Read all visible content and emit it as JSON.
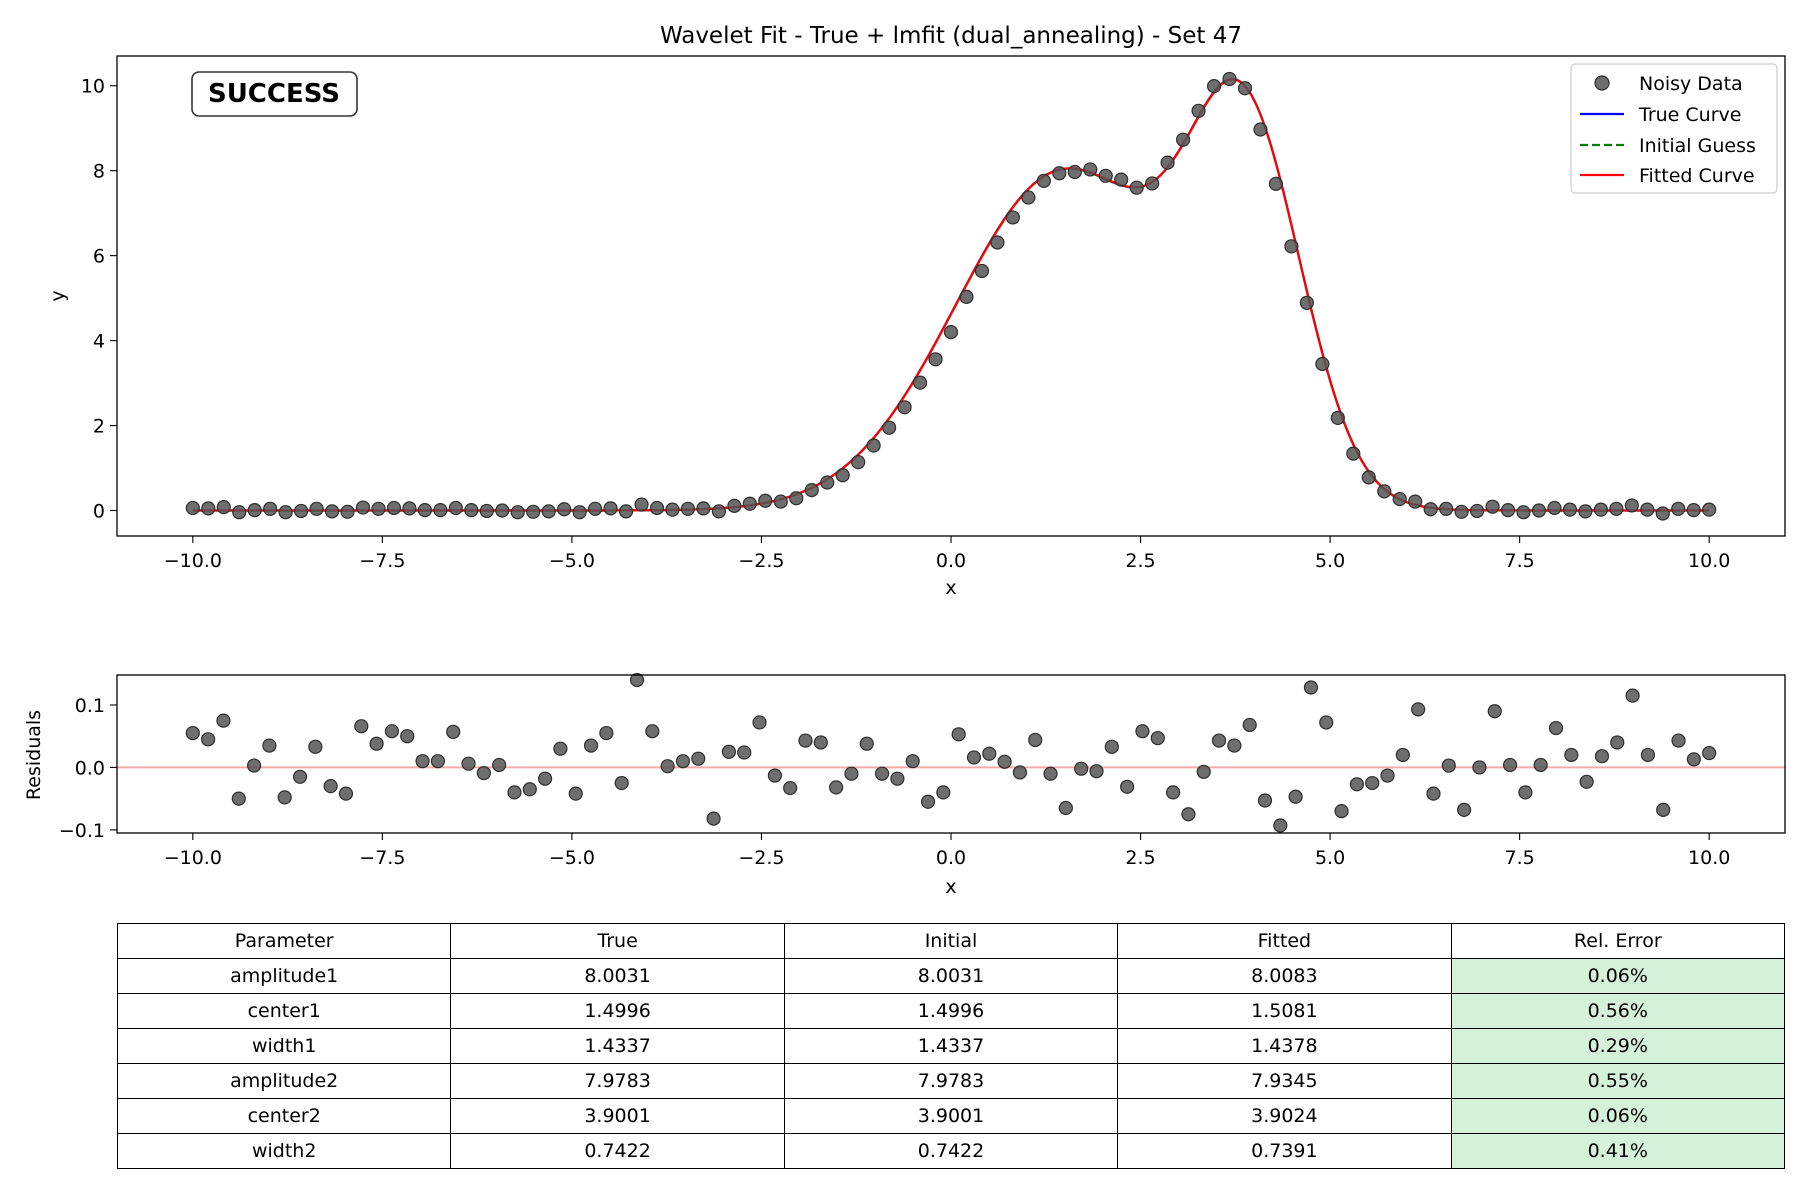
{
  "chart_data": [
    {
      "type": "scatter",
      "title": "Wavelet Fit - True + lmfit (dual_annealing) - Set 47",
      "xlabel": "x",
      "ylabel": "y",
      "xlim": [
        -11.0,
        11.0
      ],
      "ylim": [
        -0.6,
        10.7
      ],
      "xticks": [
        -10.0,
        -7.5,
        -5.0,
        -2.5,
        0.0,
        2.5,
        5.0,
        7.5,
        10.0
      ],
      "xtick_labels": [
        "−10.0",
        "−7.5",
        "−5.0",
        "−2.5",
        "0.0",
        "2.5",
        "5.0",
        "7.5",
        "10.0"
      ],
      "yticks": [
        0,
        2,
        4,
        6,
        8,
        10
      ],
      "ytick_labels": [
        "0",
        "2",
        "4",
        "6",
        "8",
        "10"
      ],
      "grid": false,
      "legend_placement": "top-right",
      "status_badge": {
        "text": "SUCCESS",
        "color": "#008000"
      },
      "series": [
        {
          "name": "Noisy Data",
          "kind": "markers",
          "color": "#555555",
          "y": [
            0.06,
            0.05,
            0.08,
            -0.04,
            0.01,
            0.04,
            -0.04,
            -0.01,
            0.04,
            -0.02,
            -0.03,
            0.07,
            0.04,
            0.06,
            0.05,
            0.01,
            0.01,
            0.06,
            0.01,
            -0.01,
            0.0,
            -0.04,
            -0.03,
            -0.02,
            0.03,
            -0.04,
            0.04,
            0.05,
            -0.02,
            0.14,
            0.06,
            0.02,
            0.04,
            0.05,
            -0.02,
            0.11,
            0.16,
            0.23,
            0.21,
            0.29,
            0.48,
            0.66,
            0.83,
            1.14,
            1.53,
            1.95,
            2.43,
            3.01,
            3.56,
            4.2,
            5.03,
            5.64,
            6.31,
            6.9,
            7.37,
            7.76,
            7.94,
            7.97,
            8.03,
            7.88,
            7.79,
            7.6,
            7.7,
            8.19,
            8.73,
            9.41,
            9.99,
            10.16,
            9.94,
            8.97,
            7.69,
            6.22,
            4.89,
            3.45,
            2.18,
            1.34,
            0.78,
            0.45,
            0.27,
            0.21,
            0.03,
            0.04,
            -0.03,
            -0.01,
            0.09,
            0.01,
            -0.04,
            0.0,
            0.06,
            0.02,
            -0.02,
            0.02,
            0.04,
            0.12,
            0.02,
            -0.07,
            0.04,
            0.01,
            0.02
          ]
        },
        {
          "name": "True Curve",
          "kind": "line",
          "color": "#0000ff",
          "style": "solid"
        },
        {
          "name": "Initial Guess",
          "kind": "line",
          "color": "#008000",
          "style": "dashed"
        },
        {
          "name": "Fitted Curve",
          "kind": "line",
          "color": "#ff0000",
          "style": "solid"
        }
      ],
      "model": {
        "true": {
          "amplitude1": 8.0031,
          "center1": 1.4996,
          "width1": 1.4337,
          "amplitude2": 7.9783,
          "center2": 3.9001,
          "width2": 0.7422
        },
        "initial": {
          "amplitude1": 8.0031,
          "center1": 1.4996,
          "width1": 1.4337,
          "amplitude2": 7.9783,
          "center2": 3.9001,
          "width2": 0.7422
        },
        "fitted": {
          "amplitude1": 8.0083,
          "center1": 1.5081,
          "width1": 1.4378,
          "amplitude2": 7.9345,
          "center2": 3.9024,
          "width2": 0.7391
        }
      }
    },
    {
      "type": "scatter",
      "xlabel": "x",
      "ylabel": "Residuals",
      "xlim": [
        -11.0,
        11.0
      ],
      "ylim": [
        -0.105,
        0.148
      ],
      "xticks": [
        -10.0,
        -7.5,
        -5.0,
        -2.5,
        0.0,
        2.5,
        5.0,
        7.5,
        10.0
      ],
      "xtick_labels": [
        "−10.0",
        "−7.5",
        "−5.0",
        "−2.5",
        "0.0",
        "2.5",
        "5.0",
        "7.5",
        "10.0"
      ],
      "yticks": [
        -0.1,
        0.0,
        0.1
      ],
      "ytick_labels": [
        "−0.1",
        "0.0",
        "0.1"
      ],
      "grid": false,
      "zero_line_color": "#f4aaaa",
      "series": [
        {
          "name": "Residuals",
          "kind": "markers",
          "color": "#555555",
          "y": [
            0.055,
            0.045,
            0.075,
            -0.05,
            0.003,
            0.035,
            -0.048,
            -0.015,
            0.033,
            -0.03,
            -0.042,
            0.066,
            0.038,
            0.058,
            0.05,
            0.01,
            0.01,
            0.057,
            0.006,
            -0.009,
            0.004,
            -0.04,
            -0.035,
            -0.018,
            0.03,
            -0.042,
            0.035,
            0.055,
            -0.025,
            0.14,
            0.058,
            0.002,
            0.01,
            0.014,
            -0.082,
            0.025,
            0.024,
            0.072,
            -0.013,
            -0.033,
            0.043,
            0.04,
            -0.032,
            -0.01,
            0.038,
            -0.01,
            -0.018,
            0.01,
            -0.055,
            -0.04,
            0.053,
            0.016,
            0.022,
            0.009,
            -0.008,
            0.044,
            -0.01,
            -0.065,
            -0.002,
            -0.006,
            0.033,
            -0.031,
            0.058,
            0.047,
            -0.04,
            -0.075,
            -0.007,
            0.043,
            0.035,
            0.068,
            -0.053,
            -0.093,
            -0.047,
            0.128,
            0.072,
            -0.07,
            -0.027,
            -0.025,
            -0.013,
            0.02,
            0.093,
            -0.042,
            0.003,
            -0.068,
            0.0,
            0.09,
            0.004,
            -0.04,
            0.004,
            0.063,
            0.02,
            -0.023,
            0.018,
            0.04,
            0.115,
            0.02,
            -0.068,
            0.043,
            0.013,
            0.023
          ]
        }
      ]
    },
    {
      "type": "table",
      "columns": [
        "Parameter",
        "True",
        "Initial",
        "Fitted",
        "Rel. Error"
      ],
      "rows": [
        [
          "amplitude1",
          "8.0031",
          "8.0031",
          "8.0083",
          "0.06%"
        ],
        [
          "center1",
          "1.4996",
          "1.4996",
          "1.5081",
          "0.56%"
        ],
        [
          "width1",
          "1.4337",
          "1.4337",
          "1.4378",
          "0.29%"
        ],
        [
          "amplitude2",
          "7.9783",
          "7.9783",
          "7.9345",
          "0.55%"
        ],
        [
          "center2",
          "3.9001",
          "3.9001",
          "3.9024",
          "0.06%"
        ],
        [
          "width2",
          "0.7422",
          "0.7422",
          "0.7391",
          "0.41%"
        ]
      ],
      "highlight_column_color": "#d6f1d9"
    }
  ]
}
